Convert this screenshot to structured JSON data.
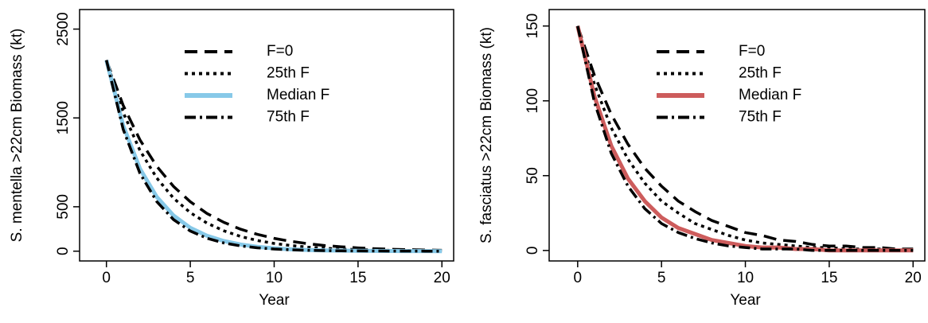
{
  "chart_data": [
    {
      "type": "line",
      "x_label": "Year",
      "y_label": "S. mentella >22cm Biomass (kt)",
      "x": [
        0,
        1,
        2,
        3,
        4,
        5,
        6,
        7,
        8,
        9,
        10,
        11,
        12,
        13,
        14,
        15,
        16,
        17,
        18,
        19,
        20
      ],
      "xlim": [
        -1.6,
        20.7
      ],
      "ylim": [
        -110,
        2720
      ],
      "xticks": [
        0,
        5,
        10,
        15,
        20
      ],
      "yticks": [
        0,
        500,
        1500,
        2500
      ],
      "legend": "top",
      "series": [
        {
          "name": "F=0",
          "color": "#000000",
          "dash": "dashed",
          "values": [
            2150,
            1641,
            1252,
            955,
            729,
            556,
            424,
            324,
            247,
            189,
            144,
            110,
            84,
            64,
            49,
            37,
            28,
            22,
            17,
            13,
            10
          ]
        },
        {
          "name": "25th F",
          "color": "#000000",
          "dash": "dotted",
          "values": [
            2150,
            1561,
            1133,
            823,
            597,
            434,
            315,
            229,
            166,
            120,
            87,
            64,
            46,
            33,
            24,
            18,
            13,
            9,
            7,
            5,
            4
          ]
        },
        {
          "name": "Median F",
          "color": "#87c9e8",
          "dash": "solid",
          "values": [
            2150,
            1413,
            928,
            610,
            401,
            263,
            173,
            114,
            75,
            49,
            32,
            21,
            14,
            9,
            6,
            4,
            3,
            2,
            1,
            1,
            0
          ]
        },
        {
          "name": "75th F",
          "color": "#000000",
          "dash": "dotdash",
          "values": [
            2150,
            1371,
            875,
            558,
            356,
            227,
            145,
            92,
            59,
            38,
            24,
            15,
            10,
            6,
            4,
            3,
            2,
            1,
            1,
            0,
            0
          ]
        }
      ]
    },
    {
      "type": "line",
      "x_label": "Year",
      "y_label": "S. fasciatus >22cm Biomass (kt)",
      "x": [
        0,
        1,
        2,
        3,
        4,
        5,
        6,
        7,
        8,
        9,
        10,
        11,
        12,
        13,
        14,
        15,
        16,
        17,
        18,
        19,
        20
      ],
      "xlim": [
        -1.7,
        20.7
      ],
      "ylim": [
        -7,
        161
      ],
      "xticks": [
        0,
        5,
        10,
        15,
        20
      ],
      "yticks": [
        0,
        50,
        100,
        150
      ],
      "legend": "top",
      "series": [
        {
          "name": "F=0",
          "color": "#000000",
          "dash": "dashed",
          "values": [
            150,
            117,
            91,
            71,
            55,
            43,
            33,
            26,
            20,
            16,
            12,
            10,
            7,
            6,
            4,
            3,
            3,
            2,
            2,
            1,
            1
          ]
        },
        {
          "name": "25th F",
          "color": "#000000",
          "dash": "dotted",
          "values": [
            150,
            111,
            82,
            61,
            45,
            33,
            25,
            18,
            14,
            10,
            7,
            5,
            4,
            3,
            2,
            2,
            1,
            1,
            1,
            0,
            0
          ]
        },
        {
          "name": "Median F",
          "color": "#cd5c5c",
          "dash": "solid",
          "values": [
            150,
            103,
            70,
            48,
            33,
            22,
            15,
            11,
            7,
            5,
            3,
            2,
            2,
            1,
            1,
            0,
            0,
            0,
            0,
            0,
            0
          ]
        },
        {
          "name": "75th F",
          "color": "#000000",
          "dash": "dotdash",
          "values": [
            150,
            99,
            65,
            43,
            28,
            18,
            12,
            8,
            5,
            3,
            2,
            1,
            1,
            1,
            0,
            0,
            0,
            0,
            0,
            0,
            0
          ]
        }
      ]
    }
  ]
}
